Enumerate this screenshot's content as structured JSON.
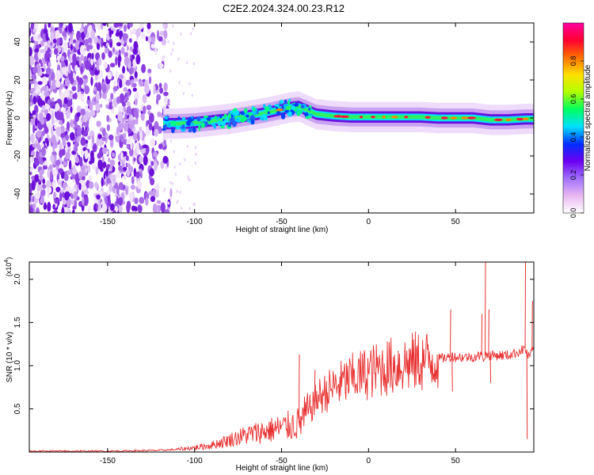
{
  "title": "C2E2.2024.324.00.23.R12",
  "chart_data": [
    {
      "type": "heatmap",
      "xlabel": "Height of straight line (km)",
      "ylabel": "Frequency (Hz)",
      "xlim": [
        -195,
        95
      ],
      "ylim": [
        -50,
        50
      ],
      "xticks": [
        -150,
        -100,
        -50,
        0,
        50
      ],
      "yticks": [
        -40,
        -20,
        0,
        20,
        40
      ],
      "colorbar": {
        "label": "Normalized spectral amplitude",
        "range": [
          0,
          1
        ],
        "ticks": [
          "0.0",
          "0.2",
          "0.4",
          "0.6",
          "0.8"
        ],
        "colors": [
          "#ffffff",
          "#e8b8f0",
          "#a070ff",
          "#6a00f0",
          "#0030ff",
          "#00e0ff",
          "#00ff60",
          "#b0ff00",
          "#ffe000",
          "#ff7000",
          "#ff0030",
          "#ff00a0"
        ]
      },
      "ridge": {
        "x": [
          -118,
          -110,
          -100,
          -90,
          -80,
          -70,
          -60,
          -50,
          -45,
          -40,
          -35,
          -30,
          -20,
          -10,
          0,
          10,
          20,
          30,
          40,
          50,
          60,
          70,
          80,
          90,
          95
        ],
        "y": [
          -3,
          -3,
          -2.5,
          -1.5,
          -0.5,
          1,
          2.5,
          4.5,
          5.5,
          6,
          4,
          2,
          1,
          0.5,
          0.5,
          0.5,
          0.5,
          0.5,
          0,
          0,
          0,
          -1,
          -1,
          -0.5,
          -0.5
        ]
      },
      "noise_region_x": [
        -195,
        -118
      ]
    },
    {
      "type": "line",
      "xlabel": "Height of straight line (km)",
      "ylabel": "SNR (10 * v/v)",
      "y_multiplier": "(x10^4)",
      "xlim": [
        -195,
        95
      ],
      "ylim": [
        0,
        2.2
      ],
      "xticks": [
        -150,
        -100,
        -50,
        0,
        50
      ],
      "yticks": [
        0.5,
        1.0,
        1.5,
        2.0
      ],
      "color": "#e83030",
      "series": [
        {
          "x": [
            -195,
            -150,
            -120,
            -110,
            -100,
            -90,
            -80,
            -70,
            -60,
            -50,
            -40,
            -35,
            -30,
            -20,
            -10,
            0,
            10,
            20,
            30,
            40,
            47,
            48,
            50,
            60,
            65,
            66,
            68,
            70,
            75,
            80,
            85,
            88,
            90,
            92,
            95
          ],
          "y": [
            0.01,
            0.01,
            0.02,
            0.03,
            0.05,
            0.08,
            0.14,
            0.2,
            0.24,
            0.28,
            0.33,
            0.45,
            0.62,
            0.75,
            0.85,
            0.92,
            0.98,
            1.02,
            1.05,
            1.08,
            1.1,
            1.12,
            1.1,
            1.1,
            1.12,
            1.1,
            1.12,
            1.12,
            1.12,
            1.12,
            1.15,
            1.18,
            1.2,
            1.1,
            1.2
          ]
        }
      ],
      "spikes": [
        {
          "x": -40,
          "y": 1.13
        },
        {
          "x": -31,
          "y": 0.95
        },
        {
          "x": 47,
          "y": 1.65
        },
        {
          "x": 48,
          "y": 0.7
        },
        {
          "x": 65,
          "y": 1.6
        },
        {
          "x": 67,
          "y": 2.2
        },
        {
          "x": 69,
          "y": 1.65
        },
        {
          "x": 70,
          "y": 0.8
        },
        {
          "x": 90,
          "y": 2.2
        },
        {
          "x": 91,
          "y": 0.15
        },
        {
          "x": 94,
          "y": 1.75
        }
      ]
    }
  ]
}
